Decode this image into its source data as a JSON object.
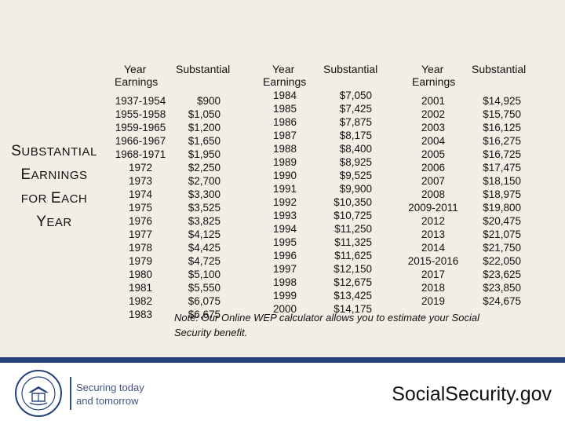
{
  "title": {
    "w1_first": "S",
    "w1_rest": "UBSTANTIAL",
    "w2_first": "E",
    "w2_rest": "ARNINGS",
    "w3_for": "FOR",
    "w3_first": "E",
    "w3_rest": "ACH",
    "w4_first": "Y",
    "w4_rest": "EAR"
  },
  "headers": {
    "year": "Year",
    "substantial": "Substantial",
    "earnings": "Earnings"
  },
  "columns": [
    {
      "rows": [
        {
          "year": "1937-1954",
          "amount": "$900"
        },
        {
          "year": "1955-1958",
          "amount": "$1,050"
        },
        {
          "year": "1959-1965",
          "amount": "$1,200"
        },
        {
          "year": "1966-1967",
          "amount": "$1,650"
        },
        {
          "year": "1968-1971",
          "amount": "$1,950"
        },
        {
          "year": "1972",
          "amount": "$2,250"
        },
        {
          "year": "1973",
          "amount": "$2,700"
        },
        {
          "year": "1974",
          "amount": "$3,300"
        },
        {
          "year": "1975",
          "amount": "$3,525"
        },
        {
          "year": "1976",
          "amount": "$3,825"
        },
        {
          "year": "1977",
          "amount": "$4,125"
        },
        {
          "year": "1978",
          "amount": "$4,425"
        },
        {
          "year": "1979",
          "amount": "$4,725"
        },
        {
          "year": "1980",
          "amount": "$5,100"
        },
        {
          "year": "1981",
          "amount": "$5,550"
        },
        {
          "year": "1982",
          "amount": "$6,075"
        },
        {
          "year": "1983",
          "amount": "$6,675"
        }
      ]
    },
    {
      "rows": [
        {
          "year": "1984",
          "amount": "$7,050"
        },
        {
          "year": "1985",
          "amount": "$7,425"
        },
        {
          "year": "1986",
          "amount": "$7,875"
        },
        {
          "year": "1987",
          "amount": "$8,175"
        },
        {
          "year": "1988",
          "amount": "$8,400"
        },
        {
          "year": "1989",
          "amount": "$8,925"
        },
        {
          "year": "1990",
          "amount": "$9,525"
        },
        {
          "year": "1991",
          "amount": "$9,900"
        },
        {
          "year": "1992",
          "amount": "$10,350"
        },
        {
          "year": "1993",
          "amount": "$10,725"
        },
        {
          "year": "1994",
          "amount": "$11,250"
        },
        {
          "year": "1995",
          "amount": "$11,325"
        },
        {
          "year": "1996",
          "amount": "$11,625"
        },
        {
          "year": "1997",
          "amount": "$12,150"
        },
        {
          "year": "1998",
          "amount": "$12,675"
        },
        {
          "year": "1999",
          "amount": "$13,425"
        },
        {
          "year": "2000",
          "amount": "$14,175"
        }
      ]
    },
    {
      "rows": [
        {
          "year": "2001",
          "amount": "$14,925"
        },
        {
          "year": "2002",
          "amount": "$15,750"
        },
        {
          "year": "2003",
          "amount": "$16,125"
        },
        {
          "year": "2004",
          "amount": "$16,275"
        },
        {
          "year": "2005",
          "amount": "$16,725"
        },
        {
          "year": "2006",
          "amount": "$17,475"
        },
        {
          "year": "2007",
          "amount": "$18,150"
        },
        {
          "year": "2008",
          "amount": "$18,975"
        },
        {
          "year": "2009-2011",
          "amount": "$19,800"
        },
        {
          "year": "2012",
          "amount": "$20,475"
        },
        {
          "year": "2013",
          "amount": "$21,075"
        },
        {
          "year": "2014",
          "amount": "$21,750"
        },
        {
          "year": "2015-2016",
          "amount": "$22,050"
        },
        {
          "year": "2017",
          "amount": "$23,625"
        },
        {
          "year": "2018",
          "amount": "$23,850"
        },
        {
          "year": "2019",
          "amount": "$24,675"
        }
      ]
    }
  ],
  "note": "Note: Our Online WEP calculator allows you to estimate your Social Security benefit.",
  "footer": {
    "tagline_line1": "Securing today",
    "tagline_line2": "and tomorrow",
    "site": "SocialSecurity.gov",
    "seal_icon": "ssa-seal-icon"
  },
  "colors": {
    "background": "#f3eee5",
    "footer_bar": "#23407a",
    "tagline": "#42557f"
  }
}
